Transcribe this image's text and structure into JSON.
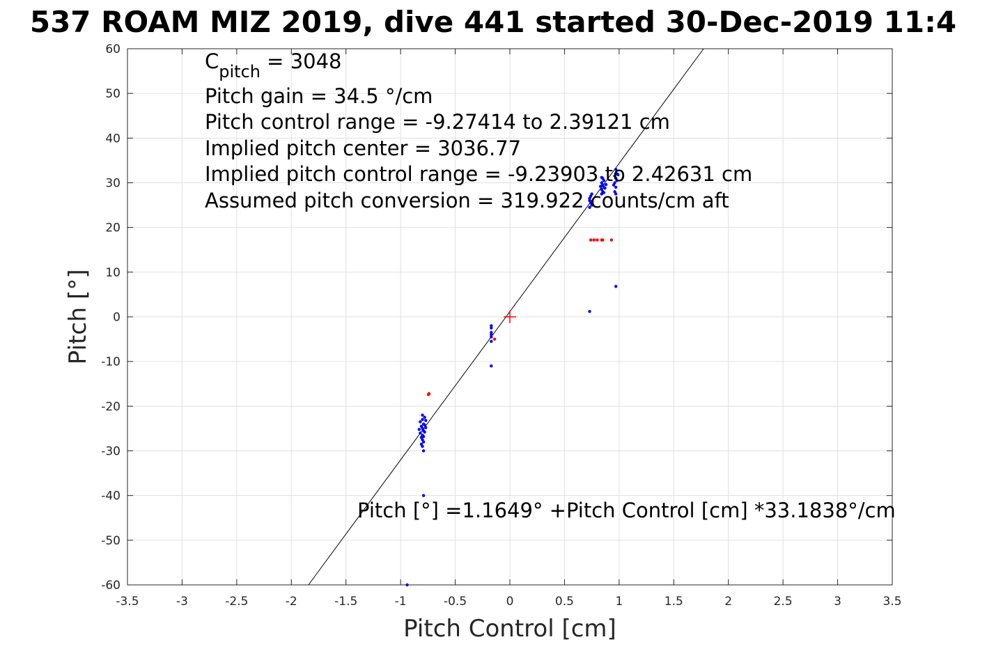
{
  "chart_data": {
    "type": "scatter",
    "title": "537 ROAM MIZ 2019, dive 441 started 30-Dec-2019 11:4",
    "xlabel": "Pitch Control [cm]",
    "ylabel": "Pitch [°]",
    "xlim": [
      -3.5,
      3.5
    ],
    "ylim": [
      -60,
      60
    ],
    "grid": true,
    "x_ticks": [
      -3.5,
      -3,
      -2.5,
      -2,
      -1.5,
      -1,
      -0.5,
      0,
      0.5,
      1,
      1.5,
      2,
      2.5,
      3,
      3.5
    ],
    "x_tick_labels": [
      "-3.5",
      "-3",
      "-2.5",
      "-2",
      "-1.5",
      "-1",
      "-0.5",
      "0",
      "0.5",
      "1",
      "1.5",
      "2",
      "2.5",
      "3",
      "3.5"
    ],
    "y_ticks": [
      -60,
      -50,
      -40,
      -30,
      -20,
      -10,
      0,
      10,
      20,
      30,
      40,
      50,
      60
    ],
    "y_tick_labels": [
      "-60",
      "-50",
      "-40",
      "-30",
      "-20",
      "-10",
      "0",
      "10",
      "20",
      "30",
      "40",
      "50",
      "60"
    ],
    "annotations": {
      "c_pitch_base": "C",
      "c_pitch_sub": "pitch",
      "c_pitch_value": " = 3048",
      "pitch_gain": "Pitch gain = 34.5 °/cm",
      "control_range": "Pitch control range = -9.27414 to 2.39121 cm",
      "implied_center": "Implied pitch center = 3036.77",
      "implied_range": "Implied pitch control range = -9.23903 to 2.42631 cm",
      "assumed_conversion": "Assumed pitch conversion = 319.922 counts/cm aft",
      "fit_equation": "Pitch [°] =1.1649° +Pitch Control [cm] *33.1838°/cm"
    },
    "fit_line": {
      "intercept": 1.1649,
      "slope": 33.1838,
      "color": "#000000"
    },
    "center_marker": {
      "x": 0,
      "y": 0,
      "color": "#ff0000"
    },
    "series": [
      {
        "color": "#0000ff",
        "points": [
          [
            -0.8,
            -23
          ],
          [
            -0.78,
            -22.5
          ],
          [
            -0.79,
            -24
          ],
          [
            -0.81,
            -24.5
          ],
          [
            -0.8,
            -25
          ],
          [
            -0.79,
            -25.5
          ],
          [
            -0.82,
            -26
          ],
          [
            -0.8,
            -26.5
          ],
          [
            -0.78,
            -24.2
          ],
          [
            -0.81,
            -27
          ],
          [
            -0.8,
            -27.5
          ],
          [
            -0.79,
            -28
          ],
          [
            -0.81,
            -28.5
          ],
          [
            -0.8,
            -29
          ],
          [
            -0.79,
            -30
          ],
          [
            -0.77,
            -24.8
          ],
          [
            -0.78,
            -25.8
          ],
          [
            -0.82,
            -23.5
          ],
          [
            -0.8,
            -22
          ],
          [
            -0.77,
            -23.2
          ],
          [
            -0.83,
            -25.2
          ],
          [
            -0.79,
            -26.8
          ],
          [
            -0.79,
            -40
          ],
          [
            -0.94,
            -60
          ],
          [
            -0.17,
            -2
          ],
          [
            -0.17,
            -2.5
          ],
          [
            -0.17,
            -3.5
          ],
          [
            -0.17,
            -4
          ],
          [
            -0.17,
            -4.5
          ],
          [
            -0.17,
            -5.5
          ],
          [
            -0.17,
            -11
          ],
          [
            0.73,
            1.2
          ],
          [
            0.97,
            6.8
          ],
          [
            0.73,
            24.5
          ],
          [
            0.74,
            25.5
          ],
          [
            0.73,
            26.5
          ],
          [
            0.74,
            27
          ],
          [
            0.75,
            27.5
          ],
          [
            0.73,
            26
          ],
          [
            0.75,
            25
          ],
          [
            0.84,
            27.5
          ],
          [
            0.85,
            28
          ],
          [
            0.84,
            28.5
          ],
          [
            0.86,
            29
          ],
          [
            0.85,
            29.5
          ],
          [
            0.84,
            30
          ],
          [
            0.86,
            30.5
          ],
          [
            0.85,
            31
          ],
          [
            0.87,
            28.8
          ],
          [
            0.83,
            29.2
          ],
          [
            0.86,
            27.8
          ],
          [
            0.88,
            29.6
          ],
          [
            0.84,
            31.2
          ],
          [
            0.96,
            28
          ],
          [
            0.97,
            29
          ],
          [
            0.96,
            30
          ],
          [
            0.97,
            31
          ],
          [
            0.98,
            32
          ],
          [
            0.97,
            33
          ],
          [
            0.96,
            31.5
          ],
          [
            0.98,
            30.5
          ],
          [
            0.97,
            27.5
          ],
          [
            0.95,
            29.5
          ],
          [
            0.99,
            31.8
          ]
        ]
      },
      {
        "color": "#ff0000",
        "points": [
          [
            -0.74,
            -17.2
          ],
          [
            -0.745,
            -17.4
          ],
          [
            -0.14,
            -5
          ],
          [
            0.74,
            17.2
          ],
          [
            0.77,
            17.2
          ],
          [
            0.8,
            17.2
          ],
          [
            0.84,
            17.2
          ],
          [
            0.85,
            17.2
          ],
          [
            0.93,
            17.2
          ]
        ]
      }
    ]
  }
}
